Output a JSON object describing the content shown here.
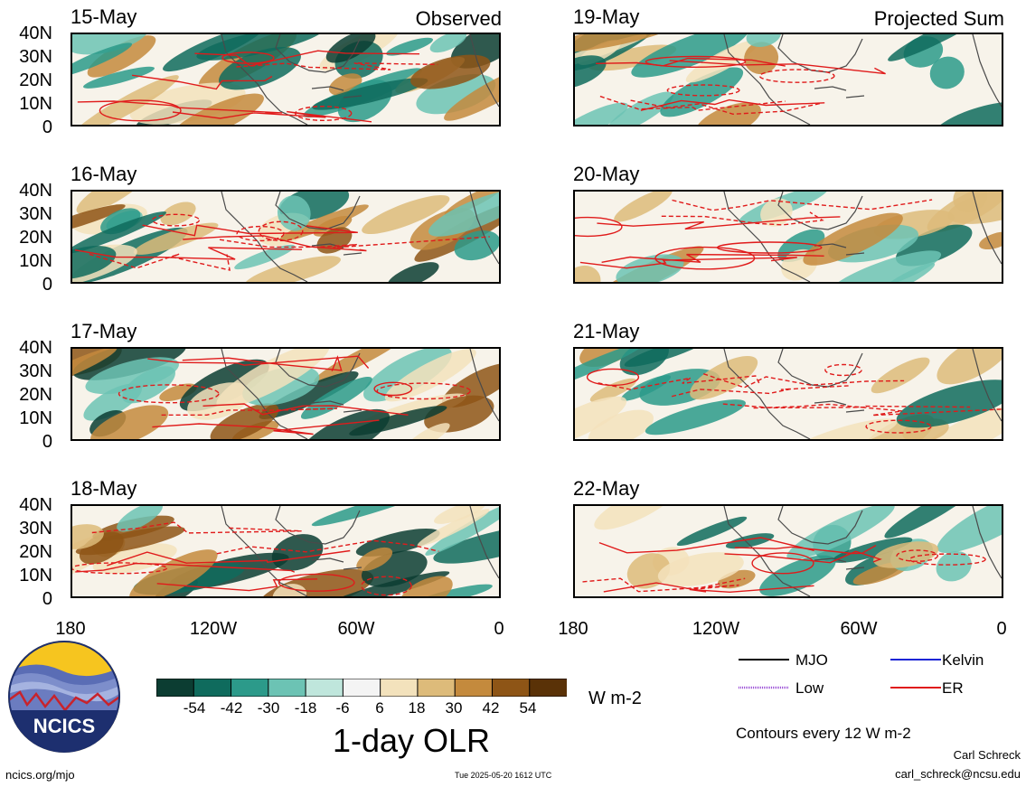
{
  "panels": [
    {
      "date": "15-May"
    },
    {
      "date": "16-May"
    },
    {
      "date": "17-May"
    },
    {
      "date": "18-May"
    },
    {
      "date": "19-May"
    },
    {
      "date": "20-May"
    },
    {
      "date": "21-May"
    },
    {
      "date": "22-May"
    }
  ],
  "corner_labels": {
    "left": "Observed",
    "right": "Projected Sum"
  },
  "y_ticks": [
    "40N",
    "30N",
    "20N",
    "10N",
    "0"
  ],
  "x_ticks": [
    "180",
    "120W",
    "60W",
    "0"
  ],
  "colorbar": {
    "labels": [
      "-54",
      "-42",
      "-30",
      "-18",
      "-6",
      "6",
      "18",
      "30",
      "42",
      "54"
    ],
    "colors": [
      "#0c3d32",
      "#0f6b5d",
      "#2c9a8a",
      "#6cc3b4",
      "#bfe6dc",
      "#f4f4f4",
      "#f3e2bc",
      "#ddbb7a",
      "#c48a3d",
      "#8e5516",
      "#5a3207"
    ],
    "units": "W m-2",
    "title": "1-day OLR"
  },
  "legend": {
    "items": [
      {
        "label": "MJO",
        "color": "#000000"
      },
      {
        "label": "Kelvin",
        "color": "#1a24d6"
      },
      {
        "label": "Low",
        "color": "#9a4fd6"
      },
      {
        "label": "ER",
        "color": "#e01b1b"
      }
    ],
    "contours_note": "Contours every 12 W m-2"
  },
  "logo_text": "NCICS",
  "footer": {
    "site": "ncics.org/mjo",
    "timestamp": "Tue 2025-05-20 1612 UTC",
    "author": "Carl Schreck",
    "email": "carl_schreck@ncsu.edu"
  }
}
